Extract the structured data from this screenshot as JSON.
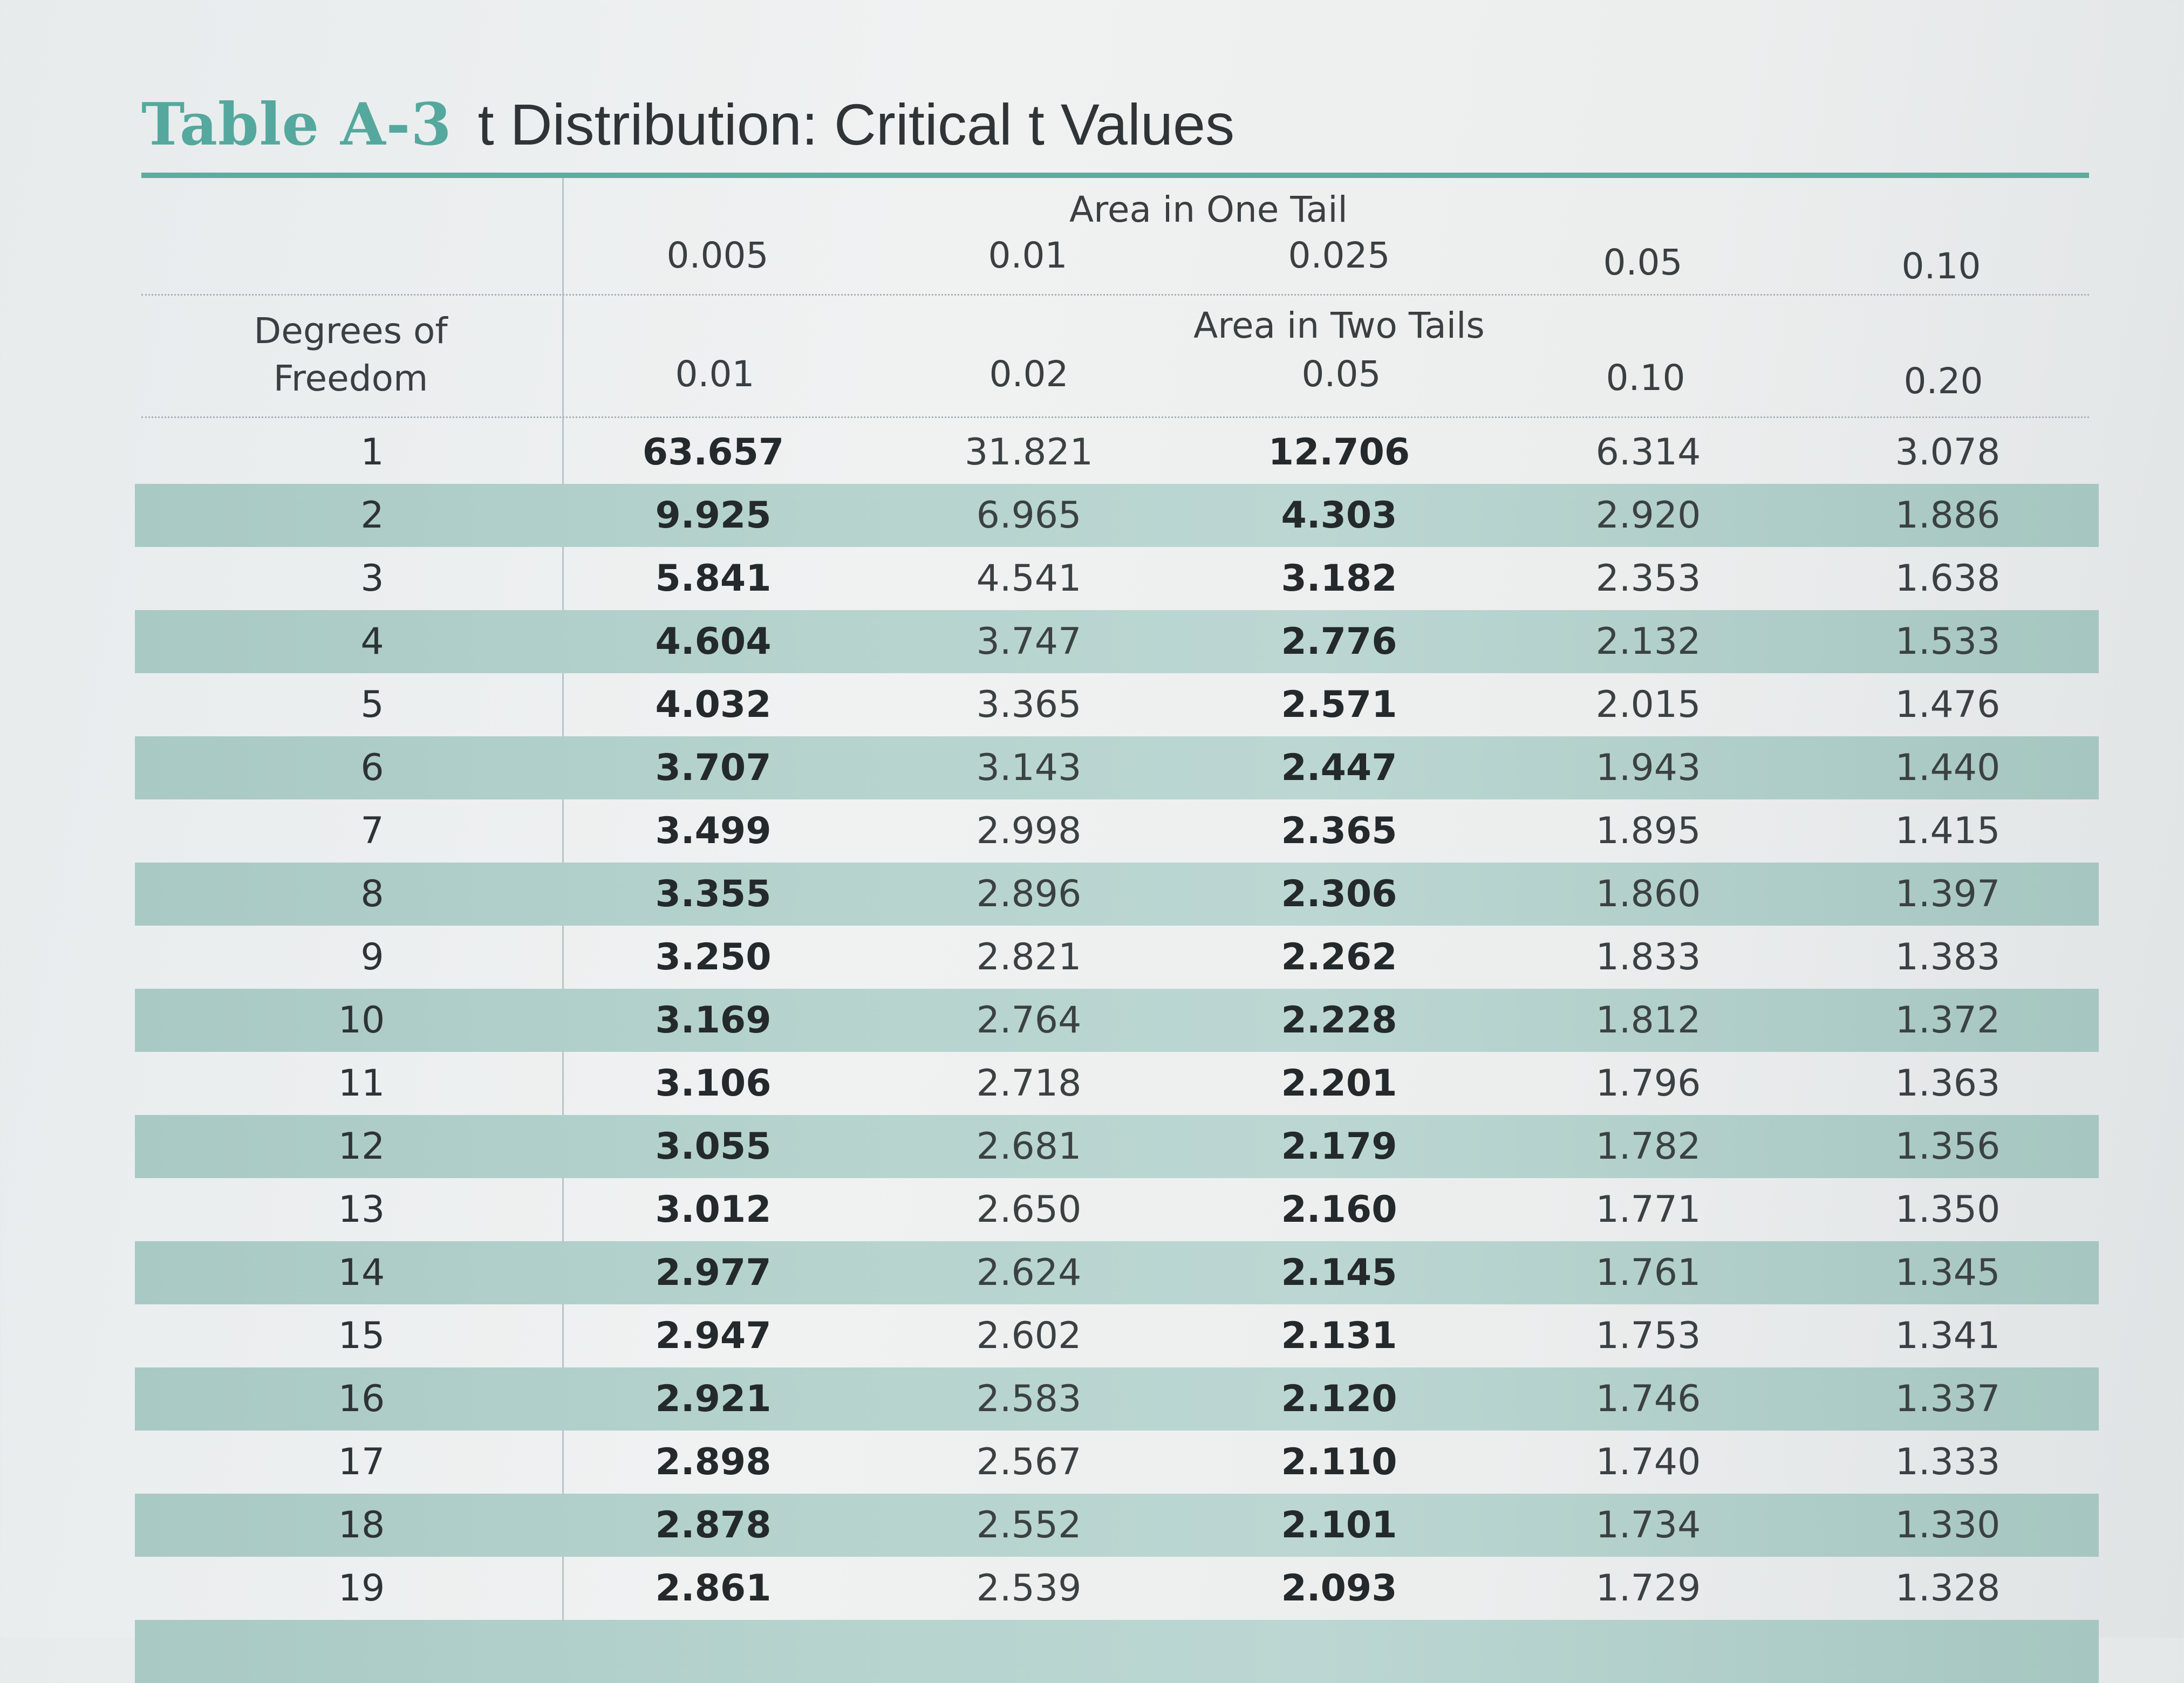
{
  "title": {
    "number": "Table A-3",
    "text": "t Distribution: Critical t Values"
  },
  "header": {
    "one_tail_label": "Area in One Tail",
    "two_tails_label": "Area in Two Tails",
    "dof_label_line1": "Degrees of",
    "dof_label_line2": "Freedom",
    "one_tail": [
      "0.005",
      "0.01",
      "0.025",
      "0.05",
      "0.10"
    ],
    "two_tails": [
      "0.01",
      "0.02",
      "0.05",
      "0.10",
      "0.20"
    ]
  },
  "rows": [
    {
      "df": "1",
      "v": [
        "63.657",
        "31.821",
        "12.706",
        "6.314",
        "3.078"
      ]
    },
    {
      "df": "2",
      "v": [
        "9.925",
        "6.965",
        "4.303",
        "2.920",
        "1.886"
      ]
    },
    {
      "df": "3",
      "v": [
        "5.841",
        "4.541",
        "3.182",
        "2.353",
        "1.638"
      ]
    },
    {
      "df": "4",
      "v": [
        "4.604",
        "3.747",
        "2.776",
        "2.132",
        "1.533"
      ]
    },
    {
      "df": "5",
      "v": [
        "4.032",
        "3.365",
        "2.571",
        "2.015",
        "1.476"
      ]
    },
    {
      "df": "6",
      "v": [
        "3.707",
        "3.143",
        "2.447",
        "1.943",
        "1.440"
      ]
    },
    {
      "df": "7",
      "v": [
        "3.499",
        "2.998",
        "2.365",
        "1.895",
        "1.415"
      ]
    },
    {
      "df": "8",
      "v": [
        "3.355",
        "2.896",
        "2.306",
        "1.860",
        "1.397"
      ]
    },
    {
      "df": "9",
      "v": [
        "3.250",
        "2.821",
        "2.262",
        "1.833",
        "1.383"
      ]
    },
    {
      "df": "10",
      "v": [
        "3.169",
        "2.764",
        "2.228",
        "1.812",
        "1.372"
      ]
    },
    {
      "df": "11",
      "v": [
        "3.106",
        "2.718",
        "2.201",
        "1.796",
        "1.363"
      ]
    },
    {
      "df": "12",
      "v": [
        "3.055",
        "2.681",
        "2.179",
        "1.782",
        "1.356"
      ]
    },
    {
      "df": "13",
      "v": [
        "3.012",
        "2.650",
        "2.160",
        "1.771",
        "1.350"
      ]
    },
    {
      "df": "14",
      "v": [
        "2.977",
        "2.624",
        "2.145",
        "1.761",
        "1.345"
      ]
    },
    {
      "df": "15",
      "v": [
        "2.947",
        "2.602",
        "2.131",
        "1.753",
        "1.341"
      ]
    },
    {
      "df": "16",
      "v": [
        "2.921",
        "2.583",
        "2.120",
        "1.746",
        "1.337"
      ]
    },
    {
      "df": "17",
      "v": [
        "2.898",
        "2.567",
        "2.110",
        "1.740",
        "1.333"
      ]
    },
    {
      "df": "18",
      "v": [
        "2.878",
        "2.552",
        "2.101",
        "1.734",
        "1.330"
      ]
    },
    {
      "df": "19",
      "v": [
        "2.861",
        "2.539",
        "2.093",
        "1.729",
        "1.328"
      ]
    }
  ],
  "colors": {
    "accent": "#5fab9f",
    "row_shade": "#b6d3ce"
  }
}
